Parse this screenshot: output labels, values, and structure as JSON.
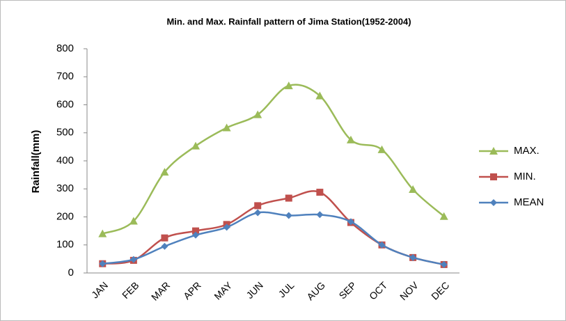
{
  "chart_data": {
    "type": "line",
    "title": "Min. and Max. Rainfall pattern of Jima Station(1952-2004)",
    "y_label": "Rainfall(mm)",
    "categories": [
      "JAN",
      "FEB",
      "MAR",
      "APR",
      "MAY",
      "JUN",
      "JUL",
      "AUG",
      "SEP",
      "OCT",
      "NOV",
      "DEC"
    ],
    "series": [
      {
        "name": "MAX.",
        "color": "#9bbb59",
        "marker": "triangle",
        "values": [
          140,
          185,
          360,
          453,
          518,
          565,
          668,
          632,
          475,
          440,
          298,
          202
        ]
      },
      {
        "name": "MIN.",
        "color": "#c0504d",
        "marker": "square",
        "values": [
          33,
          45,
          125,
          150,
          173,
          240,
          267,
          288,
          180,
          100,
          55,
          30
        ]
      },
      {
        "name": "MEAN",
        "color": "#4f81bd",
        "marker": "diamond",
        "values": [
          33,
          48,
          95,
          135,
          163,
          215,
          205,
          208,
          183,
          100,
          55,
          30
        ]
      }
    ],
    "ylim": [
      0,
      800
    ],
    "yticks": [
      0,
      100,
      200,
      300,
      400,
      500,
      600,
      700,
      800
    ],
    "grid": false,
    "legend": "right",
    "smooth": true
  }
}
